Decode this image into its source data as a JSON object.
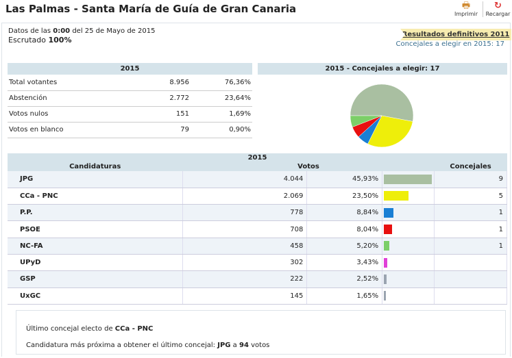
{
  "title": "Las Palmas - Santa María de Guía de Gran Canaria",
  "toolbar": {
    "print": "Imprimir",
    "reload": "Recargar",
    "print_icon": "printer-icon",
    "reload_icon": "reload-icon"
  },
  "info": {
    "data_prefix": "Datos de las",
    "time": "0:00",
    "date": "del 25 de Mayo de 2015",
    "scrutinized_label": "Escrutado",
    "scrutinized": "100%"
  },
  "links": {
    "results_2011": "Resultados definitivos 2011",
    "seats_to_elect": "Concejales a elegir en 2015: 17"
  },
  "summary": {
    "header": "2015",
    "rows": [
      {
        "label": "Total votantes",
        "value": "8.956",
        "pct": "76,36%"
      },
      {
        "label": "Abstención",
        "value": "2.772",
        "pct": "23,64%"
      },
      {
        "label": "Votos nulos",
        "value": "151",
        "pct": "1,69%"
      },
      {
        "label": "Votos en blanco",
        "value": "79",
        "pct": "0,90%"
      }
    ]
  },
  "pie": {
    "header": "2015 - Concejales a elegir: 17"
  },
  "results": {
    "header": "2015",
    "col_candidates": "Candidaturas",
    "col_votes": "Votos",
    "col_seats": "Concejales",
    "rows": [
      {
        "name": "JPG",
        "votes": "4.044",
        "pct": "45,93%",
        "pct_value": 45.93,
        "seats": "9",
        "color": "#a9bfa1"
      },
      {
        "name": "CCa - PNC",
        "votes": "2.069",
        "pct": "23,50%",
        "pct_value": 23.5,
        "seats": "5",
        "color": "#eeee0a"
      },
      {
        "name": "P.P.",
        "votes": "778",
        "pct": "8,84%",
        "pct_value": 8.84,
        "seats": "1",
        "color": "#1a7fd4"
      },
      {
        "name": "PSOE",
        "votes": "708",
        "pct": "8,04%",
        "pct_value": 8.04,
        "seats": "1",
        "color": "#e81010"
      },
      {
        "name": "NC-FA",
        "votes": "458",
        "pct": "5,20%",
        "pct_value": 5.2,
        "seats": "1",
        "color": "#7ccf68"
      },
      {
        "name": "UPyD",
        "votes": "302",
        "pct": "3,43%",
        "pct_value": 3.43,
        "seats": "",
        "color": "#e040d8"
      },
      {
        "name": "GSP",
        "votes": "222",
        "pct": "2,52%",
        "pct_value": 2.52,
        "seats": "",
        "color": "#9aa4b0"
      },
      {
        "name": "UxGC",
        "votes": "145",
        "pct": "1,65%",
        "pct_value": 1.65,
        "seats": "",
        "color": "#9aa4b0"
      }
    ]
  },
  "footer": {
    "last_prefix": "Último concejal electo de",
    "last_party": "CCa - PNC",
    "next_prefix": "Candidatura más próxima a obtener el último concejal:",
    "next_party": "JPG",
    "next_mid": "a",
    "next_votes": "94",
    "next_suffix": "votos"
  }
}
